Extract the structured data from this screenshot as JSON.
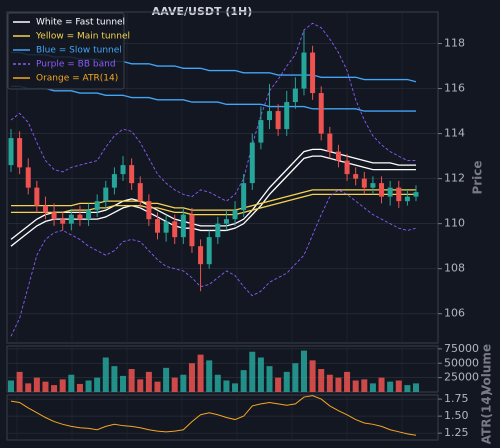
{
  "chart_data": [
    {
      "type": "candlestick",
      "title": "AAVE/USDT (1H)",
      "ylabel": "Price",
      "up_color": "#26a69a",
      "down_color": "#ef5350",
      "ylim": [
        104.7,
        119.4
      ],
      "yticks": [
        106,
        108,
        110,
        112,
        114,
        116,
        118
      ],
      "grid": true,
      "legend": "upper left",
      "open": [
        112.6,
        113.8,
        112.5,
        111.6,
        110.8,
        110.5,
        110.2,
        110.0,
        110.4,
        110.2,
        110.6,
        111.0,
        111.6,
        112.2,
        112.6,
        111.8,
        111.0,
        110.2,
        109.6,
        110.1,
        109.4,
        110.4,
        109.0,
        108.2,
        109.4,
        110.0,
        110.2,
        110.6,
        111.8,
        113.6,
        114.6,
        115.0,
        114.2,
        115.4,
        116.0,
        117.6,
        115.8,
        114.0,
        113.2,
        112.8,
        112.2,
        112.0,
        111.6,
        111.8,
        111.2,
        111.6,
        111.0,
        111.2
      ],
      "high": [
        114.2,
        114.1,
        112.9,
        111.9,
        111.2,
        110.9,
        110.5,
        110.6,
        110.8,
        110.9,
        111.3,
        111.9,
        112.5,
        113.0,
        112.9,
        112.1,
        111.3,
        110.5,
        110.4,
        110.4,
        110.7,
        110.7,
        109.3,
        109.7,
        110.3,
        110.6,
        111.0,
        112.2,
        114.0,
        115.2,
        116.2,
        115.3,
        115.9,
        116.5,
        118.6,
        117.9,
        116.1,
        114.3,
        113.5,
        113.1,
        112.5,
        112.3,
        112.1,
        112.1,
        111.9,
        111.9,
        111.5,
        111.7
      ],
      "low": [
        112.3,
        112.2,
        111.3,
        110.5,
        110.2,
        109.9,
        109.7,
        109.7,
        109.9,
        109.9,
        110.3,
        110.7,
        111.3,
        111.9,
        111.5,
        110.7,
        109.9,
        109.3,
        109.2,
        109.1,
        109.1,
        108.7,
        107.0,
        108.0,
        109.1,
        109.7,
        109.9,
        110.3,
        111.5,
        113.3,
        114.2,
        113.9,
        113.9,
        115.1,
        115.7,
        115.5,
        113.7,
        112.9,
        112.5,
        111.9,
        111.7,
        111.3,
        111.3,
        110.9,
        110.8,
        110.7,
        110.8,
        111.0
      ],
      "close": [
        113.8,
        112.5,
        111.6,
        110.8,
        110.5,
        110.2,
        110.0,
        110.4,
        110.2,
        110.6,
        111.0,
        111.6,
        112.2,
        112.6,
        111.8,
        111.0,
        110.2,
        109.6,
        110.1,
        109.4,
        110.4,
        109.0,
        108.2,
        109.4,
        110.0,
        110.2,
        110.6,
        111.8,
        113.6,
        114.6,
        115.0,
        114.2,
        115.4,
        116.0,
        117.6,
        115.8,
        114.0,
        113.2,
        112.8,
        112.2,
        112.0,
        111.6,
        111.8,
        111.2,
        111.6,
        111.0,
        111.2,
        111.4
      ],
      "bands": [
        {
          "name": "White = Fast tunnel",
          "color": "#ffffff",
          "dashed": false,
          "upper": [
            109.3,
            109.6,
            109.9,
            110.2,
            110.4,
            110.5,
            110.5,
            110.5,
            110.5,
            110.5,
            110.5,
            110.6,
            110.8,
            111.0,
            111.1,
            111.0,
            110.8,
            110.6,
            110.4,
            110.2,
            110.1,
            110.0,
            109.9,
            109.9,
            109.9,
            109.9,
            110.0,
            110.2,
            110.6,
            111.1,
            111.6,
            112.0,
            112.4,
            112.8,
            113.2,
            113.3,
            113.3,
            113.2,
            113.1,
            113.0,
            112.9,
            112.8,
            112.7,
            112.7,
            112.7,
            112.6,
            112.6,
            112.6
          ],
          "lower": [
            109.0,
            109.3,
            109.6,
            109.9,
            110.1,
            110.2,
            110.2,
            110.2,
            110.2,
            110.2,
            110.2,
            110.3,
            110.5,
            110.7,
            110.8,
            110.7,
            110.5,
            110.3,
            110.1,
            109.9,
            109.8,
            109.8,
            109.7,
            109.7,
            109.7,
            109.7,
            109.8,
            110.0,
            110.4,
            110.8,
            111.3,
            111.7,
            112.1,
            112.5,
            112.9,
            113.0,
            113.0,
            112.9,
            112.8,
            112.7,
            112.6,
            112.5,
            112.4,
            112.4,
            112.4,
            112.4,
            112.4,
            112.4
          ]
        },
        {
          "name": "Yellow = Main tunnel",
          "color": "#f5d34f",
          "dashed": false,
          "upper": [
            110.8,
            110.8,
            110.8,
            110.8,
            110.8,
            110.8,
            110.8,
            110.8,
            110.9,
            110.9,
            110.9,
            111.0,
            111.0,
            111.0,
            111.0,
            111.0,
            110.9,
            110.9,
            110.8,
            110.7,
            110.7,
            110.6,
            110.6,
            110.6,
            110.6,
            110.6,
            110.6,
            110.7,
            110.8,
            110.9,
            111.0,
            111.1,
            111.2,
            111.3,
            111.4,
            111.5,
            111.5,
            111.5,
            111.5,
            111.5,
            111.5,
            111.5,
            111.5,
            111.5,
            111.5,
            111.5,
            111.5,
            111.5
          ],
          "lower": [
            110.5,
            110.5,
            110.5,
            110.5,
            110.5,
            110.5,
            110.5,
            110.6,
            110.6,
            110.6,
            110.7,
            110.7,
            110.8,
            110.8,
            110.8,
            110.8,
            110.7,
            110.7,
            110.6,
            110.5,
            110.5,
            110.4,
            110.4,
            110.4,
            110.4,
            110.4,
            110.4,
            110.5,
            110.6,
            110.7,
            110.8,
            110.9,
            111.0,
            111.1,
            111.2,
            111.3,
            111.3,
            111.3,
            111.3,
            111.3,
            111.3,
            111.3,
            111.3,
            111.3,
            111.3,
            111.3,
            111.3,
            111.3
          ]
        },
        {
          "name": "Blue = Slow tunnel",
          "color": "#42a5f5",
          "dashed": false,
          "upper": [
            117.6,
            117.6,
            117.5,
            117.5,
            117.5,
            117.4,
            117.4,
            117.4,
            117.3,
            117.3,
            117.3,
            117.2,
            117.2,
            117.2,
            117.1,
            117.1,
            117.1,
            117.0,
            117.0,
            117.0,
            116.9,
            116.9,
            116.9,
            116.8,
            116.8,
            116.8,
            116.8,
            116.7,
            116.7,
            116.7,
            116.7,
            116.6,
            116.6,
            116.6,
            116.6,
            116.6,
            116.5,
            116.5,
            116.5,
            116.5,
            116.5,
            116.4,
            116.4,
            116.4,
            116.4,
            116.4,
            116.4,
            116.3
          ],
          "lower": [
            116.1,
            116.1,
            116.0,
            116.0,
            116.0,
            115.9,
            115.9,
            115.9,
            115.8,
            115.8,
            115.8,
            115.7,
            115.7,
            115.7,
            115.6,
            115.6,
            115.6,
            115.5,
            115.5,
            115.5,
            115.5,
            115.4,
            115.4,
            115.4,
            115.4,
            115.3,
            115.3,
            115.3,
            115.3,
            115.3,
            115.2,
            115.2,
            115.2,
            115.2,
            115.2,
            115.1,
            115.1,
            115.1,
            115.1,
            115.1,
            115.1,
            115.0,
            115.0,
            115.0,
            115.0,
            115.0,
            115.0,
            115.0
          ]
        },
        {
          "name": "Purple = BB band",
          "color": "#8a5cf6",
          "dashed": true,
          "upper": [
            114.6,
            114.9,
            114.5,
            113.6,
            112.8,
            112.4,
            112.3,
            112.5,
            112.6,
            112.7,
            112.8,
            113.4,
            113.9,
            114.2,
            114.1,
            113.6,
            112.9,
            112.2,
            111.8,
            111.5,
            111.3,
            111.2,
            111.5,
            111.4,
            111.2,
            111.0,
            111.3,
            112.0,
            113.5,
            114.8,
            115.9,
            116.4,
            117.0,
            117.5,
            118.6,
            118.9,
            118.7,
            118.2,
            117.6,
            116.8,
            115.5,
            114.6,
            113.9,
            113.5,
            113.2,
            113.0,
            112.8,
            112.8
          ],
          "lower": [
            105.0,
            105.8,
            107.2,
            108.6,
            109.3,
            109.6,
            109.7,
            109.5,
            109.3,
            109.0,
            108.8,
            108.6,
            108.8,
            109.2,
            109.3,
            109.2,
            108.8,
            108.4,
            108.1,
            108.0,
            107.9,
            107.6,
            107.2,
            107.3,
            107.6,
            107.9,
            107.7,
            107.2,
            106.8,
            107.0,
            107.4,
            107.6,
            107.8,
            108.2,
            108.6,
            109.5,
            110.4,
            111.2,
            111.5,
            111.3,
            111.0,
            110.7,
            110.4,
            110.2,
            110.0,
            109.8,
            109.7,
            109.8
          ]
        }
      ]
    },
    {
      "type": "bar",
      "ylabel": "Volume",
      "ylim": [
        0,
        80000
      ],
      "yticks": [
        25000,
        50000,
        75000
      ],
      "grid": true,
      "values": [
        20000,
        35000,
        15000,
        25000,
        18000,
        12000,
        22000,
        30000,
        14000,
        20000,
        25000,
        60000,
        45000,
        28000,
        40000,
        22000,
        35000,
        18000,
        42000,
        25000,
        30000,
        50000,
        65000,
        55000,
        30000,
        20000,
        15000,
        38000,
        70000,
        60000,
        45000,
        25000,
        35000,
        50000,
        72000,
        55000,
        40000,
        30000,
        25000,
        35000,
        20000,
        22000,
        15000,
        25000,
        18000,
        20000,
        12000,
        15000
      ]
    },
    {
      "type": "line",
      "ylabel": "ATR(14)",
      "ylim": [
        1.15,
        1.81
      ],
      "yticks": [
        1.25,
        {
          "value": 1.5,
          "label": "1.50"
        },
        1.75
      ],
      "grid": true,
      "series": [
        {
          "name": "Orange = ATR(14)",
          "color": "#f5a623",
          "values": [
            1.72,
            1.7,
            1.62,
            1.55,
            1.48,
            1.42,
            1.38,
            1.35,
            1.33,
            1.32,
            1.3,
            1.35,
            1.38,
            1.36,
            1.35,
            1.33,
            1.3,
            1.28,
            1.27,
            1.28,
            1.3,
            1.42,
            1.52,
            1.55,
            1.52,
            1.48,
            1.45,
            1.5,
            1.65,
            1.68,
            1.7,
            1.68,
            1.66,
            1.68,
            1.78,
            1.8,
            1.75,
            1.65,
            1.58,
            1.52,
            1.45,
            1.4,
            1.38,
            1.35,
            1.3,
            1.27,
            1.24,
            1.22
          ]
        }
      ]
    }
  ]
}
